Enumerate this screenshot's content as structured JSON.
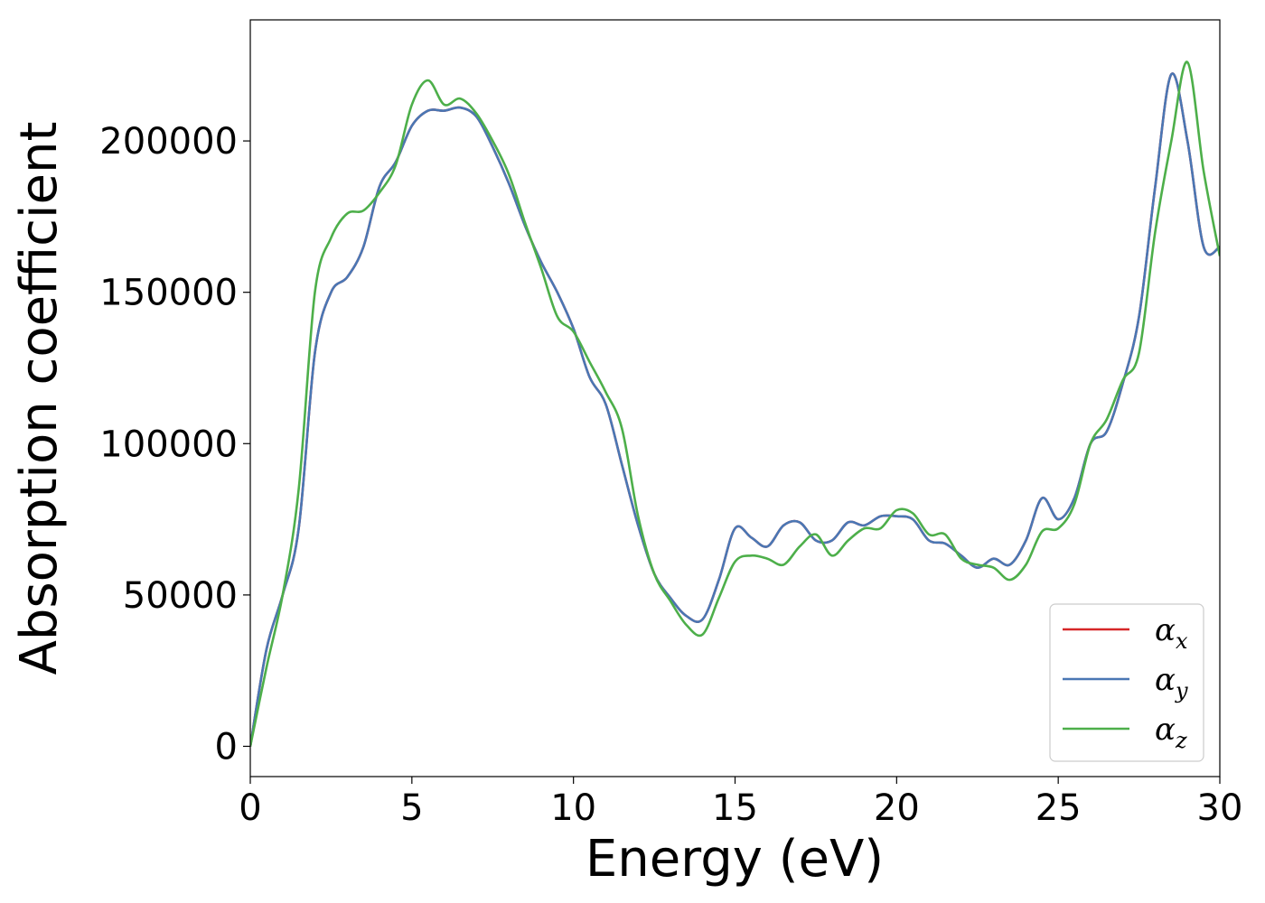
{
  "chart_data": {
    "type": "line",
    "xlabel": "Energy (eV)",
    "ylabel": "Absorption coefficient",
    "xlim": [
      0,
      30
    ],
    "ylim": [
      -10000,
      240000
    ],
    "xticks": [
      0,
      5,
      10,
      15,
      20,
      25,
      30
    ],
    "xtick_labels": [
      "0",
      "5",
      "10",
      "15",
      "20",
      "25",
      "30"
    ],
    "yticks": [
      0,
      50000,
      100000,
      150000,
      200000
    ],
    "ytick_labels": [
      "0",
      "50000",
      "100000",
      "150000",
      "200000"
    ],
    "grid": false,
    "legend_position": "bottom-right",
    "series": [
      {
        "name": "α_x",
        "legend_symbol": "α",
        "legend_subscript": "x",
        "color": "#d62728",
        "x": [
          0,
          0.5,
          1,
          1.5,
          2,
          2.5,
          3,
          3.5,
          4,
          4.5,
          5,
          5.5,
          6,
          6.5,
          7,
          7.5,
          8,
          8.5,
          9,
          9.5,
          10,
          10.5,
          11,
          11.5,
          12,
          12.5,
          13,
          13.5,
          14,
          14.5,
          15,
          15.5,
          16,
          16.5,
          17,
          17.5,
          18,
          18.5,
          19,
          19.5,
          20,
          20.5,
          21,
          21.5,
          22,
          22.5,
          23,
          23.5,
          24,
          24.5,
          25,
          25.5,
          26,
          26.5,
          27,
          27.5,
          28,
          28.5,
          29,
          29.5,
          30
        ],
        "values": [
          0,
          32000,
          50000,
          72000,
          130000,
          150000,
          155000,
          165000,
          185000,
          193000,
          205000,
          210000,
          210000,
          211000,
          208000,
          198000,
          186000,
          172000,
          160000,
          150000,
          138000,
          122000,
          113000,
          93000,
          73000,
          57000,
          49000,
          43000,
          42000,
          55000,
          72000,
          69000,
          66000,
          73000,
          74000,
          68000,
          68000,
          74000,
          73000,
          76000,
          76000,
          75000,
          68000,
          67000,
          63000,
          59000,
          62000,
          60000,
          68000,
          82000,
          75000,
          82000,
          100000,
          104000,
          120000,
          142000,
          185000,
          222000,
          200000,
          165000,
          165000
        ]
      },
      {
        "name": "α_y",
        "legend_symbol": "α",
        "legend_subscript": "y",
        "color": "#4a77b4",
        "x": [
          0,
          0.5,
          1,
          1.5,
          2,
          2.5,
          3,
          3.5,
          4,
          4.5,
          5,
          5.5,
          6,
          6.5,
          7,
          7.5,
          8,
          8.5,
          9,
          9.5,
          10,
          10.5,
          11,
          11.5,
          12,
          12.5,
          13,
          13.5,
          14,
          14.5,
          15,
          15.5,
          16,
          16.5,
          17,
          17.5,
          18,
          18.5,
          19,
          19.5,
          20,
          20.5,
          21,
          21.5,
          22,
          22.5,
          23,
          23.5,
          24,
          24.5,
          25,
          25.5,
          26,
          26.5,
          27,
          27.5,
          28,
          28.5,
          29,
          29.5,
          30
        ],
        "values": [
          0,
          32000,
          50000,
          72000,
          130000,
          150000,
          155000,
          165000,
          185000,
          193000,
          205000,
          210000,
          210000,
          211000,
          208000,
          198000,
          186000,
          172000,
          160000,
          150000,
          138000,
          122000,
          113000,
          93000,
          73000,
          57000,
          49000,
          43000,
          42000,
          55000,
          72000,
          69000,
          66000,
          73000,
          74000,
          68000,
          68000,
          74000,
          73000,
          76000,
          76000,
          75000,
          68000,
          67000,
          63000,
          59000,
          62000,
          60000,
          68000,
          82000,
          75000,
          82000,
          100000,
          104000,
          120000,
          142000,
          185000,
          222000,
          200000,
          165000,
          165000
        ]
      },
      {
        "name": "α_z",
        "legend_symbol": "α",
        "legend_subscript": "z",
        "color": "#4daf4a",
        "x": [
          0,
          0.5,
          1,
          1.5,
          2,
          2.5,
          3,
          3.5,
          4,
          4.5,
          5,
          5.5,
          6,
          6.5,
          7,
          7.5,
          8,
          8.5,
          9,
          9.5,
          10,
          10.5,
          11,
          11.5,
          12,
          12.5,
          13,
          13.5,
          14,
          14.5,
          15,
          15.5,
          16,
          16.5,
          17,
          17.5,
          18,
          18.5,
          19,
          19.5,
          20,
          20.5,
          21,
          21.5,
          22,
          22.5,
          23,
          23.5,
          24,
          24.5,
          25,
          25.5,
          26,
          26.5,
          27,
          27.5,
          28,
          28.5,
          29,
          29.5,
          30
        ],
        "values": [
          0,
          26000,
          50000,
          85000,
          150000,
          168000,
          176000,
          177000,
          183000,
          192000,
          212000,
          220000,
          212000,
          214000,
          209000,
          200000,
          189000,
          173000,
          158000,
          142000,
          137000,
          127000,
          117000,
          105000,
          76000,
          57000,
          48000,
          40000,
          37000,
          49000,
          61000,
          63000,
          62000,
          60000,
          66000,
          70000,
          63000,
          68000,
          72000,
          72000,
          78000,
          77000,
          70000,
          70000,
          62000,
          60000,
          59000,
          55000,
          60000,
          71000,
          72000,
          80000,
          100000,
          108000,
          121000,
          130000,
          170000,
          200000,
          226000,
          190000,
          162000
        ]
      }
    ]
  }
}
